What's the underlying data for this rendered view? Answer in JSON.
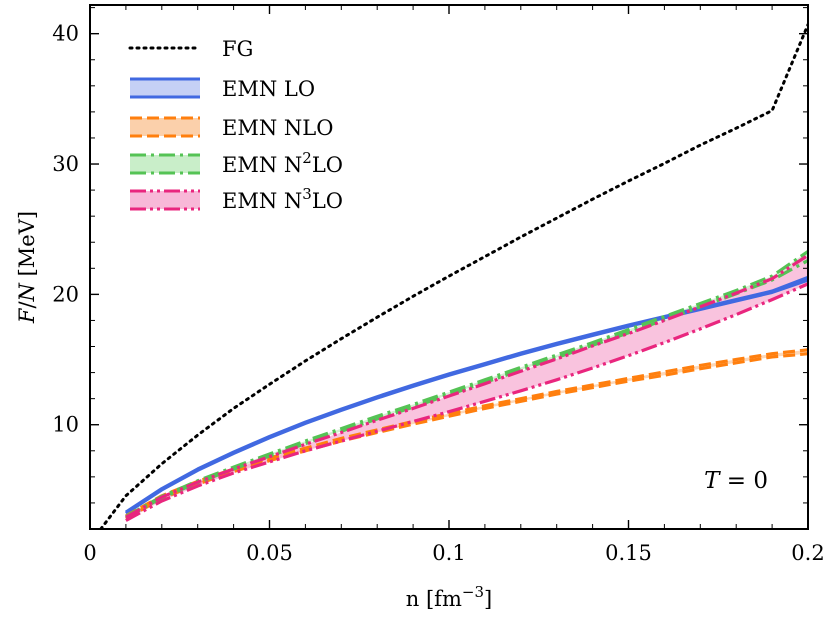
{
  "chart_data": {
    "type": "line",
    "title": "",
    "xlabel_parts": {
      "base": "n [fm",
      "sup": "−3",
      "end": "]"
    },
    "ylabel_parts": {
      "v1": "F",
      "slash": "/",
      "v2": "N",
      "unit": " [MeV]"
    },
    "xlim": [
      0,
      0.2
    ],
    "ylim": [
      2.0,
      42.2
    ],
    "x_ticks": [
      0,
      0.05,
      0.1,
      0.15,
      0.2
    ],
    "x_tick_labels": [
      "0",
      "0.05",
      "0.1",
      "0.15",
      "0.2"
    ],
    "y_ticks": [
      10,
      20,
      30,
      40
    ],
    "y_tick_labels": [
      "10",
      "20",
      "30",
      "40"
    ],
    "x_minor_step": 0.01,
    "y_minor_step": 2,
    "grid": false,
    "legend_position": "top-left",
    "annotation": {
      "var": "T",
      "op": " = ",
      "value": "0"
    },
    "x": [
      0.003,
      0.01,
      0.02,
      0.03,
      0.04,
      0.05,
      0.06,
      0.07,
      0.08,
      0.09,
      0.1,
      0.11,
      0.12,
      0.13,
      0.14,
      0.15,
      0.16,
      0.17,
      0.18,
      0.19,
      0.2
    ],
    "series": [
      {
        "key": "fg",
        "legend": {
          "text": "FG",
          "sup": "",
          "tail": ""
        },
        "color": "#000000",
        "dash": "2,5",
        "band": false,
        "upper": [
          2.0,
          4.55,
          7.0,
          9.2,
          11.25,
          13.1,
          14.9,
          16.6,
          18.25,
          19.85,
          21.4,
          22.9,
          24.4,
          25.85,
          27.3,
          28.7,
          30.05,
          31.45,
          32.75,
          34.1,
          40.7
        ],
        "lower": null
      },
      {
        "key": "lo",
        "legend": {
          "text": "EMN LO",
          "sup": "",
          "tail": ""
        },
        "color": "#4169E1",
        "fill": "#c5d0f5",
        "dash": "",
        "band": true,
        "upper": [
          null,
          3.3,
          5.1,
          6.6,
          7.9,
          9.1,
          10.2,
          11.2,
          12.15,
          13.05,
          13.9,
          14.7,
          15.5,
          16.25,
          16.95,
          17.65,
          18.3,
          18.95,
          19.6,
          20.25,
          21.3
        ],
        "lower": [
          null,
          3.2,
          5.0,
          6.5,
          7.8,
          9.0,
          10.1,
          11.1,
          12.05,
          12.95,
          13.8,
          14.6,
          15.4,
          16.15,
          16.85,
          17.55,
          18.2,
          18.85,
          19.5,
          20.15,
          21.1
        ]
      },
      {
        "key": "nlo",
        "legend": {
          "text": "EMN NLO",
          "sup": "",
          "tail": ""
        },
        "color": "#FF7F0E",
        "fill": "#fbd0ab",
        "dash": "12,5",
        "band": true,
        "upper": [
          null,
          3.0,
          4.55,
          5.65,
          6.6,
          7.45,
          8.2,
          8.95,
          9.6,
          10.25,
          10.85,
          11.45,
          12.0,
          12.55,
          13.05,
          13.55,
          14.05,
          14.55,
          15.0,
          15.45,
          15.75
        ],
        "lower": [
          null,
          2.8,
          4.35,
          5.45,
          6.4,
          7.25,
          8.0,
          8.75,
          9.4,
          10.05,
          10.65,
          11.25,
          11.8,
          12.35,
          12.85,
          13.35,
          13.8,
          14.3,
          14.75,
          15.2,
          15.45
        ]
      },
      {
        "key": "n2lo",
        "legend": {
          "text": "EMN N",
          "sup": "2",
          "tail": "LO"
        },
        "color": "#55C355",
        "fill": "#c9eec9",
        "dash": "16,5,3,5",
        "band": true,
        "upper": [
          null,
          2.95,
          4.5,
          5.7,
          6.75,
          7.75,
          8.75,
          9.7,
          10.65,
          11.55,
          12.5,
          13.45,
          14.4,
          15.35,
          16.3,
          17.3,
          18.3,
          19.3,
          20.3,
          21.4,
          23.3
        ],
        "lower": [
          null,
          2.85,
          4.4,
          5.55,
          6.6,
          7.6,
          8.55,
          9.5,
          10.45,
          11.35,
          12.3,
          13.25,
          14.2,
          15.15,
          16.1,
          17.05,
          18.05,
          19.05,
          20.05,
          21.1,
          22.6
        ]
      },
      {
        "key": "n3lo",
        "legend": {
          "text": "EMN N",
          "sup": "3",
          "tail": "LO"
        },
        "color": "#E9267E",
        "fill": "#f8b8d8",
        "dash": "16,4,3,4,3,4",
        "band": true,
        "upper": [
          null,
          2.9,
          4.45,
          5.6,
          6.6,
          7.55,
          8.5,
          9.4,
          10.35,
          11.25,
          12.2,
          13.15,
          14.1,
          15.05,
          16.05,
          17.0,
          18.0,
          19.05,
          20.1,
          21.2,
          23.0
        ],
        "lower": [
          null,
          2.65,
          4.15,
          5.3,
          6.3,
          7.15,
          8.0,
          8.75,
          9.5,
          10.25,
          11.0,
          11.8,
          12.6,
          13.45,
          14.35,
          15.3,
          16.3,
          17.35,
          18.45,
          19.6,
          20.8
        ]
      }
    ]
  }
}
